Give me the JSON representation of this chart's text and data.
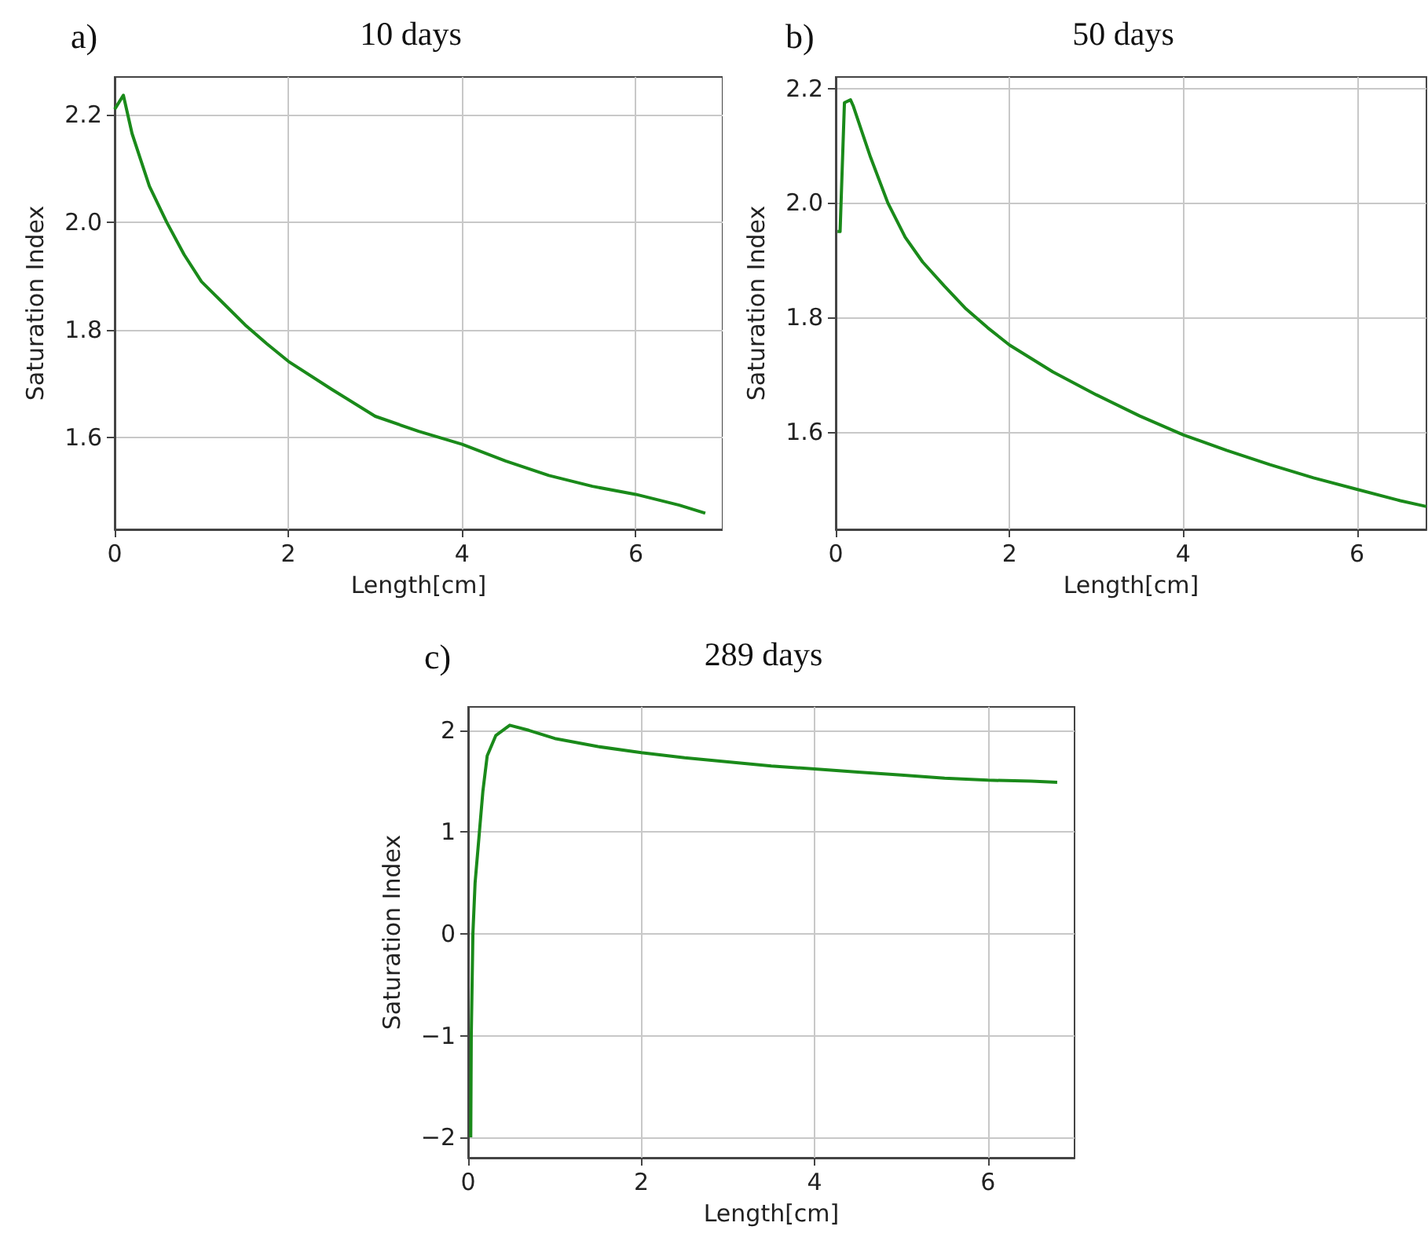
{
  "chart_data": [
    {
      "type": "line",
      "title": "10 days",
      "annotations": [
        "a)"
      ],
      "xlabel": "Length[cm]",
      "ylabel": "Saturation Index",
      "xlim": [
        0,
        7
      ],
      "ylim": [
        1.43,
        2.27
      ],
      "xticks": [
        0,
        2,
        4,
        6
      ],
      "yticks": [
        1.6,
        1.8,
        {
          "value": 2,
          "label": "2.0"
        },
        2.2
      ],
      "grid": true,
      "marker": "none",
      "line_style": "solid",
      "series": [
        {
          "color": "#1a8a1a",
          "x": [
            0,
            0.1,
            0.2,
            0.3,
            0.4,
            0.6,
            0.8,
            1,
            1.25,
            1.5,
            1.75,
            2,
            2.5,
            3,
            3.5,
            4,
            4.5,
            5,
            5.5,
            6,
            6.5,
            6.8
          ],
          "values": [
            2.21,
            2.236,
            2.165,
            2.116,
            2.067,
            2.0,
            1.94,
            1.89,
            1.85,
            1.81,
            1.775,
            1.742,
            1.69,
            1.64,
            1.612,
            1.588,
            1.557,
            1.53,
            1.51,
            1.495,
            1.475,
            1.46
          ]
        }
      ]
    },
    {
      "type": "line",
      "title": "50 days",
      "annotations": [
        "b)"
      ],
      "xlabel": "Length[cm]",
      "ylabel": "Saturation Index",
      "xlim": [
        0,
        6.8
      ],
      "ylim": [
        1.43,
        2.22
      ],
      "xticks": [
        0,
        2,
        4,
        6
      ],
      "yticks": [
        1.6,
        1.8,
        {
          "value": 2,
          "label": "2.0"
        },
        2.2
      ],
      "grid": true,
      "marker": "none",
      "line_style": "solid",
      "series": [
        {
          "color": "#1a8a1a",
          "x": [
            0.02,
            0.05,
            0.1,
            0.17,
            0.2,
            0.3,
            0.4,
            0.6,
            0.8,
            1,
            1.25,
            1.5,
            1.75,
            2,
            2.5,
            3,
            3.5,
            4,
            4.5,
            5,
            5.5,
            6,
            6.5,
            6.8
          ],
          "values": [
            1.95,
            1.95,
            2.175,
            2.18,
            2.17,
            2.125,
            2.08,
            2.0,
            1.94,
            1.897,
            1.855,
            1.815,
            1.782,
            1.752,
            1.705,
            1.665,
            1.628,
            1.595,
            1.568,
            1.543,
            1.52,
            1.5,
            1.48,
            1.47
          ]
        }
      ]
    },
    {
      "type": "line",
      "title": "289 days",
      "annotations": [
        "c)"
      ],
      "xlabel": "Length[cm]",
      "ylabel": "Saturation Index",
      "xlim": [
        0,
        7
      ],
      "ylim": [
        -2.2,
        2.23
      ],
      "xticks": [
        0,
        2,
        4,
        6
      ],
      "yticks": [
        {
          "value": -2,
          "label": "−2"
        },
        {
          "value": -1,
          "label": "−1"
        },
        0,
        1,
        2
      ],
      "grid": true,
      "marker": "none",
      "line_style": "solid",
      "series": [
        {
          "color": "#1a8a1a",
          "x": [
            0.03,
            0.036,
            0.055,
            0.08,
            0.13,
            0.17,
            0.22,
            0.32,
            0.48,
            0.7,
            1,
            1.5,
            2,
            2.5,
            3,
            3.5,
            4,
            4.5,
            5,
            5.5,
            6,
            6.5,
            6.8
          ],
          "values": [
            -2.0,
            -1.0,
            0,
            0.5,
            1.0,
            1.4,
            1.75,
            1.95,
            2.05,
            2.0,
            1.92,
            1.84,
            1.78,
            1.73,
            1.69,
            1.65,
            1.62,
            1.59,
            1.56,
            1.53,
            1.51,
            1.5,
            1.49
          ]
        }
      ]
    }
  ]
}
